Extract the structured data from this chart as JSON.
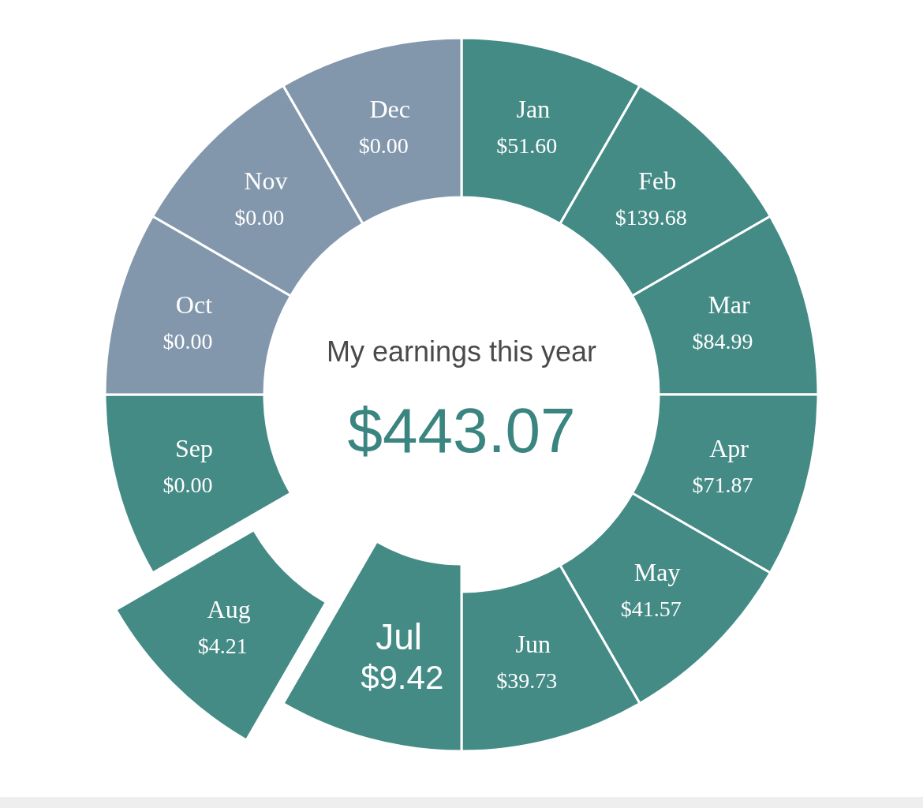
{
  "chart_data": {
    "type": "other",
    "title": "My earnings this year",
    "annotations": [
      "$443.07"
    ],
    "categories": [
      "Jan",
      "Feb",
      "Mar",
      "Apr",
      "May",
      "Jun",
      "Jul",
      "Aug",
      "Sep",
      "Oct",
      "Nov",
      "Dec"
    ],
    "values": [
      51.6,
      139.68,
      84.99,
      71.87,
      41.57,
      39.73,
      9.42,
      4.21,
      0.0,
      0.0,
      0.0,
      0.0
    ],
    "value_labels": [
      "$51.60",
      "$139.68",
      "$84.99",
      "$71.87",
      "$41.57",
      "$39.73",
      "$9.42",
      "$4.21",
      "$0.00",
      "$0.00",
      "$0.00",
      "$0.00"
    ],
    "colors": [
      "#448b86",
      "#448b86",
      "#448b86",
      "#448b86",
      "#448b86",
      "#448b86",
      "#448b86",
      "#448b86",
      "#448b86",
      "#8397ac",
      "#8397ac",
      "#8397ac"
    ]
  }
}
